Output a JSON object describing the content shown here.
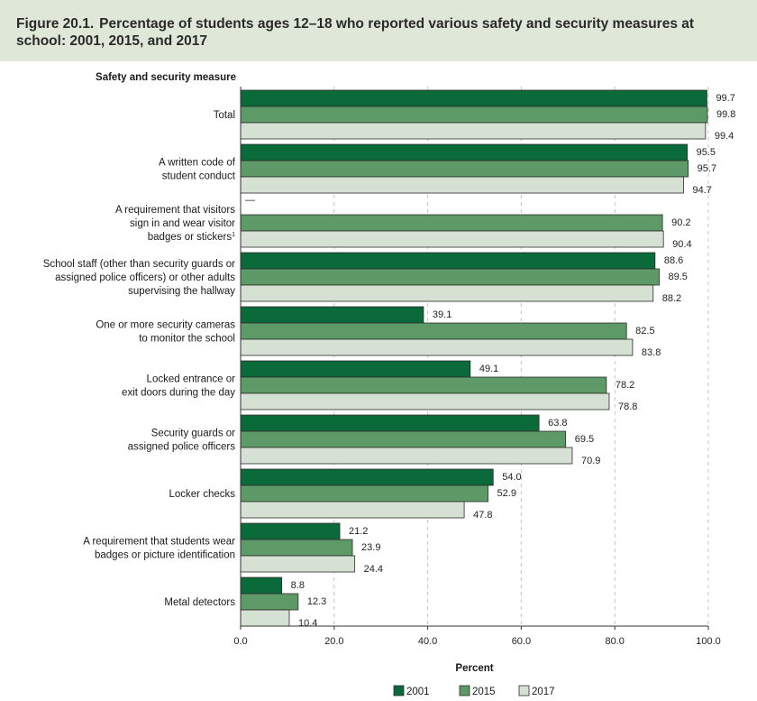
{
  "figure_label": "Figure 20.1.",
  "title": "Percentage of students ages 12–18 who reported various safety and security measures at school: 2001, 2015, and 2017",
  "chart_data": {
    "type": "bar",
    "orientation": "horizontal",
    "category_axis_title": "Safety and security measure",
    "xlabel": "Percent",
    "xlim": [
      0,
      100
    ],
    "xticks": [
      "0.0",
      "20.0",
      "40.0",
      "60.0",
      "80.0",
      "100.0"
    ],
    "missing_marker": "—",
    "categories": [
      [
        "Total"
      ],
      [
        "A written code of",
        "student conduct"
      ],
      [
        "A requirement that visitors",
        "sign in and wear visitor",
        "badges or stickers"
      ],
      [
        "School staff (other than security guards or",
        "assigned police officers) or other adults",
        "supervising the hallway"
      ],
      [
        "One or more security cameras",
        "to monitor the school"
      ],
      [
        "Locked entrance or",
        "exit doors during the day"
      ],
      [
        "Security guards or",
        "assigned police officers"
      ],
      [
        "Locker checks"
      ],
      [
        "A requirement that students wear",
        "badges or picture identification"
      ],
      [
        "Metal detectors"
      ]
    ],
    "footnote_markers": [
      null,
      null,
      "1",
      null,
      null,
      null,
      null,
      null,
      null,
      null
    ],
    "series": [
      {
        "name": "2001",
        "color": "#0a6a3a",
        "values": [
          99.7,
          95.5,
          null,
          88.6,
          39.1,
          49.1,
          63.8,
          54.0,
          21.2,
          8.8
        ]
      },
      {
        "name": "2015",
        "color": "#5e9a68",
        "values": [
          99.8,
          95.7,
          90.2,
          89.5,
          82.5,
          78.2,
          69.5,
          52.9,
          23.9,
          12.3
        ]
      },
      {
        "name": "2017",
        "color": "#d5e1d2",
        "values": [
          99.4,
          94.7,
          90.4,
          88.2,
          83.8,
          78.8,
          70.9,
          47.8,
          24.4,
          10.4
        ]
      }
    ],
    "legend": [
      "2001",
      "2015",
      "2017"
    ]
  }
}
